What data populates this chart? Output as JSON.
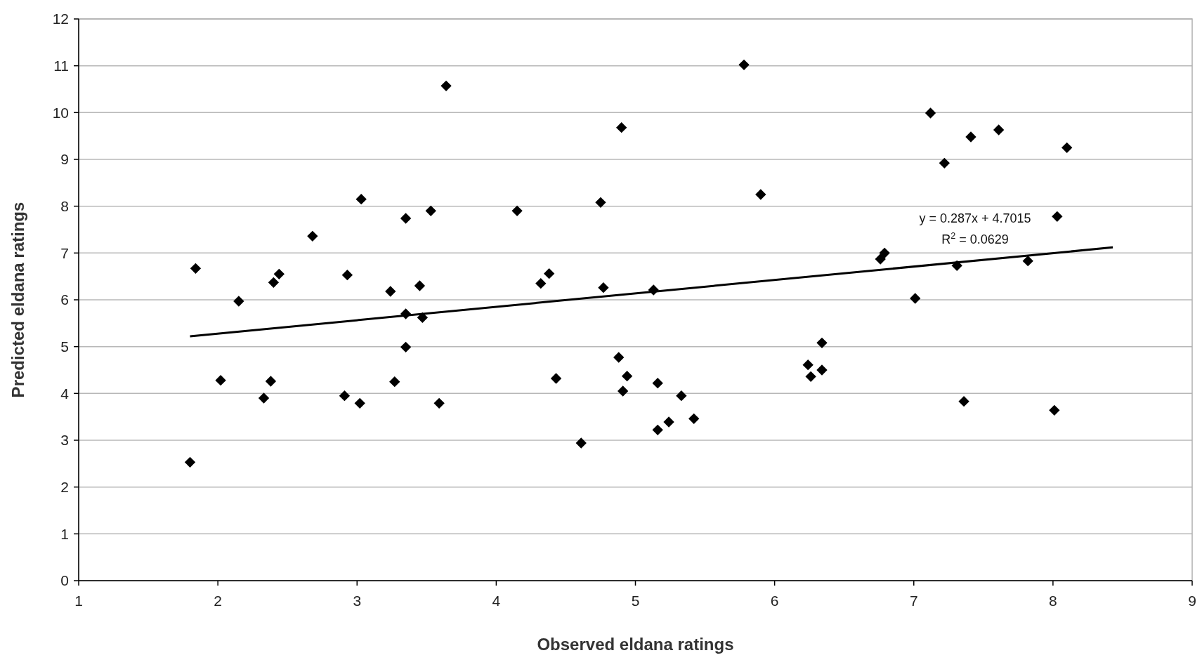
{
  "chart_data": {
    "type": "scatter",
    "xlabel": "Observed eldana ratings",
    "ylabel": "Predicted eldana ratings",
    "xlim": [
      1,
      9
    ],
    "xticks": [
      1,
      2,
      3,
      4,
      5,
      6,
      7,
      8,
      9
    ],
    "ylim": [
      0,
      12
    ],
    "yticks": [
      0,
      1,
      2,
      3,
      4,
      5,
      6,
      7,
      8,
      9,
      10,
      11,
      12
    ],
    "grid": "y",
    "marker": "diamond",
    "series": [
      {
        "type": "scatter",
        "color": "#000000",
        "x": [
          1.8,
          1.84,
          2.02,
          2.15,
          2.33,
          2.38,
          2.4,
          2.44,
          2.68,
          2.91,
          2.93,
          3.02,
          3.03,
          3.24,
          3.27,
          3.35,
          3.35,
          3.35,
          3.45,
          3.47,
          3.53,
          3.59,
          3.64,
          4.15,
          4.32,
          4.38,
          4.43,
          4.61,
          4.75,
          4.77,
          4.88,
          4.9,
          4.91,
          4.94,
          5.13,
          5.16,
          5.16,
          5.24,
          5.33,
          5.42,
          5.78,
          5.9,
          6.24,
          6.26,
          6.34,
          6.34,
          6.76,
          6.79,
          7.01,
          7.12,
          7.22,
          7.31,
          7.36,
          7.41,
          7.61,
          7.82,
          8.01,
          8.03,
          8.1
        ],
        "values": [
          2.53,
          6.67,
          4.28,
          5.97,
          3.9,
          4.26,
          6.37,
          6.55,
          7.36,
          3.95,
          6.53,
          3.79,
          8.15,
          6.18,
          4.25,
          7.74,
          5.7,
          4.99,
          6.3,
          5.62,
          7.9,
          3.79,
          10.57,
          7.9,
          6.35,
          6.56,
          4.32,
          2.94,
          8.08,
          6.26,
          4.77,
          9.68,
          4.05,
          4.37,
          6.21,
          4.22,
          3.22,
          3.39,
          3.95,
          3.46,
          11.02,
          8.25,
          4.61,
          4.36,
          5.08,
          4.5,
          6.87,
          7.0,
          6.03,
          9.99,
          8.92,
          6.73,
          3.83,
          9.48,
          9.63,
          6.83,
          3.64,
          7.78,
          9.25
        ]
      },
      {
        "type": "line",
        "color": "#000000",
        "marker": "none",
        "x": [
          1.8,
          8.43
        ],
        "values": [
          5.22,
          7.12
        ]
      }
    ],
    "annotations": [
      "y = 0.287x + 4.7015",
      "R$^{2}$ = 0.0629"
    ]
  }
}
